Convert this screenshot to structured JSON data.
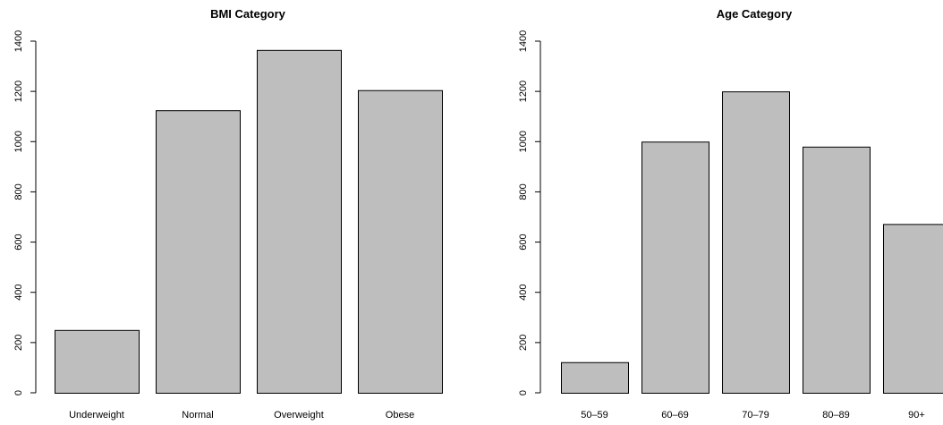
{
  "chart_data": [
    {
      "type": "bar",
      "title": "BMI Category",
      "categories": [
        "Underweight",
        "Normal",
        "Overweight",
        "Obese"
      ],
      "values": [
        250,
        1125,
        1365,
        1205
      ],
      "ylim": [
        0,
        1400
      ],
      "yticks": [
        "0",
        "200",
        "400",
        "600",
        "800",
        "1000",
        "1200",
        "1400"
      ],
      "bar_color": "#bebebe",
      "grid": false
    },
    {
      "type": "bar",
      "title": "Age Category",
      "categories": [
        "50–59",
        "60–69",
        "70–79",
        "80–89",
        "90+"
      ],
      "values": [
        122,
        1000,
        1200,
        980,
        672
      ],
      "ylim": [
        0,
        1400
      ],
      "yticks": [
        "0",
        "200",
        "400",
        "600",
        "800",
        "1000",
        "1200",
        "1400"
      ],
      "bar_color": "#bebebe",
      "grid": false
    }
  ]
}
